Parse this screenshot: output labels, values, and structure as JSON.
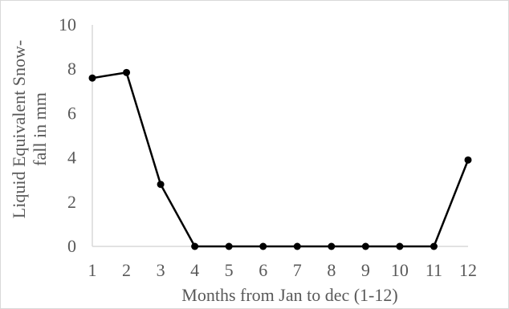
{
  "chart_data": {
    "type": "line",
    "x": [
      1,
      2,
      3,
      4,
      5,
      6,
      7,
      8,
      9,
      10,
      11,
      12
    ],
    "series": [
      {
        "values": [
          7.6,
          7.85,
          2.8,
          0,
          0,
          0,
          0,
          0,
          0,
          0,
          0,
          3.9
        ]
      }
    ],
    "xlabel": "Months from Jan to dec (1-12)",
    "ylabel_lines": [
      "Liquid Equivalent Snow-",
      "fall in mm"
    ],
    "ylim": [
      0,
      10
    ],
    "yticks": [
      0,
      2,
      4,
      6,
      8,
      10
    ],
    "xticks": [
      1,
      2,
      3,
      4,
      5,
      6,
      7,
      8,
      9,
      10,
      11,
      12
    ],
    "grid": false,
    "legend": "none",
    "colors": {
      "line": "#000000",
      "marker": "#000000",
      "axis": "#d9d9d9",
      "text": "#595959"
    }
  }
}
